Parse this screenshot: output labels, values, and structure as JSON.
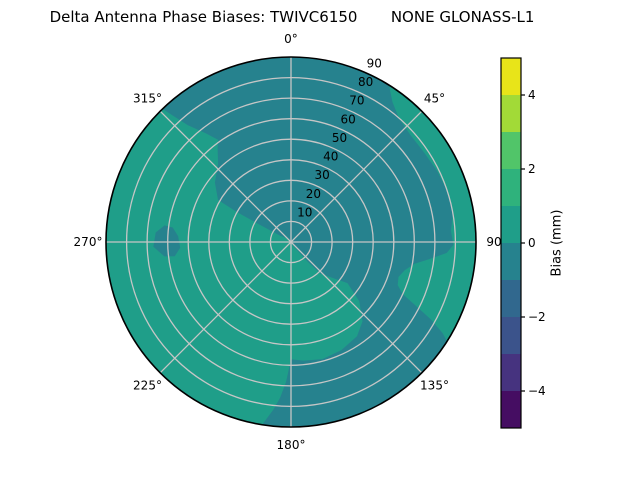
{
  "title": "Delta Antenna Phase Biases: TWIVC6150       NONE GLONASS-L1",
  "chart_data": {
    "type": "heatmap",
    "subtype": "polar-filled-contour-skyplot",
    "title": "Delta Antenna Phase Biases: TWIVC6150       NONE GLONASS-L1",
    "grid": true,
    "angular_ticks": [
      {
        "deg": 0,
        "label": "0°"
      },
      {
        "deg": 45,
        "label": "45°"
      },
      {
        "deg": 90,
        "label": "90"
      },
      {
        "deg": 135,
        "label": "135°"
      },
      {
        "deg": 180,
        "label": "180°"
      },
      {
        "deg": 225,
        "label": "225°"
      },
      {
        "deg": 270,
        "label": "270°"
      },
      {
        "deg": 315,
        "label": "315°"
      }
    ],
    "radial_ticks": [
      10,
      20,
      30,
      40,
      50,
      60,
      70,
      80,
      90
    ],
    "radial_limit": 90,
    "radial_label_angle_deg": 25,
    "colors": {
      "base": "#26828e",
      "grid": "#c6c6c6",
      "outline": "#000000"
    },
    "base_region": {
      "bias_band_mm": "-1 to 0",
      "color": "#26828e",
      "coverage": "north, east and south-central sectors"
    },
    "regions": [
      {
        "name": "west-lobe",
        "bias_band_mm": "0 to 1",
        "color": "#1f9e89",
        "outline_deg_r": [
          [
            189,
            90
          ],
          [
            198,
            90
          ],
          [
            207,
            90
          ],
          [
            216,
            90
          ],
          [
            225,
            90
          ],
          [
            234,
            90
          ],
          [
            243,
            90
          ],
          [
            252,
            90
          ],
          [
            261,
            90
          ],
          [
            270,
            90
          ],
          [
            279,
            90
          ],
          [
            288,
            90
          ],
          [
            297,
            90
          ],
          [
            306,
            90
          ],
          [
            316,
            90
          ],
          [
            318.5,
            76
          ],
          [
            322,
            67
          ],
          [
            324.5,
            61
          ],
          [
            322,
            58
          ],
          [
            317,
            52
          ],
          [
            308,
            47
          ],
          [
            300,
            41
          ],
          [
            299,
            30
          ],
          [
            299,
            18
          ],
          [
            300,
            6
          ],
          [
            320,
            2
          ],
          [
            150,
            2
          ],
          [
            140,
            12
          ],
          [
            137,
            21
          ],
          [
            126,
            34
          ],
          [
            131,
            44
          ],
          [
            138,
            52
          ],
          [
            145,
            56
          ],
          [
            155,
            58
          ],
          [
            165,
            59
          ],
          [
            174,
            58
          ],
          [
            180,
            57
          ],
          [
            182,
            68
          ],
          [
            184,
            76
          ],
          [
            186,
            82
          ],
          [
            189,
            90
          ]
        ]
      },
      {
        "name": "east-rim",
        "bias_band_mm": "0 to 1",
        "color": "#1f9e89",
        "outline_deg_r": [
          [
            32,
            90
          ],
          [
            36,
            84
          ],
          [
            41,
            80
          ],
          [
            48,
            78
          ],
          [
            56,
            78
          ],
          [
            64,
            79
          ],
          [
            72,
            80
          ],
          [
            80,
            80
          ],
          [
            86,
            78
          ],
          [
            91,
            79
          ],
          [
            94,
            76
          ],
          [
            97,
            68
          ],
          [
            100,
            61
          ],
          [
            104,
            57
          ],
          [
            108,
            55
          ],
          [
            112,
            56
          ],
          [
            115,
            60
          ],
          [
            117,
            68
          ],
          [
            119,
            78
          ],
          [
            121,
            86
          ],
          [
            122.5,
            90
          ],
          [
            114,
            90
          ],
          [
            105,
            90
          ],
          [
            96,
            90
          ],
          [
            87,
            90
          ],
          [
            78,
            90
          ],
          [
            69,
            90
          ],
          [
            60,
            90
          ],
          [
            51,
            90
          ],
          [
            42,
            90
          ]
        ]
      },
      {
        "name": "west-spot",
        "bias_band_mm": "-1 to 0",
        "color": "#26828e",
        "outline_deg_r": [
          [
            263,
            57
          ],
          [
            267,
            54
          ],
          [
            273,
            55
          ],
          [
            277,
            58
          ],
          [
            277.5,
            62
          ],
          [
            274,
            66
          ],
          [
            268,
            67
          ],
          [
            263.5,
            62
          ]
        ]
      }
    ],
    "colorbar": {
      "label": "Bias (mm)",
      "range": [
        -5,
        5
      ],
      "ticks": [
        {
          "value": 4,
          "label": "4"
        },
        {
          "value": 2,
          "label": "2"
        },
        {
          "value": 0,
          "label": "0"
        },
        {
          "value": -2,
          "label": "−2"
        },
        {
          "value": -4,
          "label": "−4"
        }
      ],
      "band_colors_bottom_to_top": [
        "#450d62",
        "#46337f",
        "#3b538b",
        "#31688e",
        "#26828e",
        "#1f9e89",
        "#2fb27c",
        "#51c569",
        "#a2da37",
        "#e8e419"
      ]
    }
  }
}
